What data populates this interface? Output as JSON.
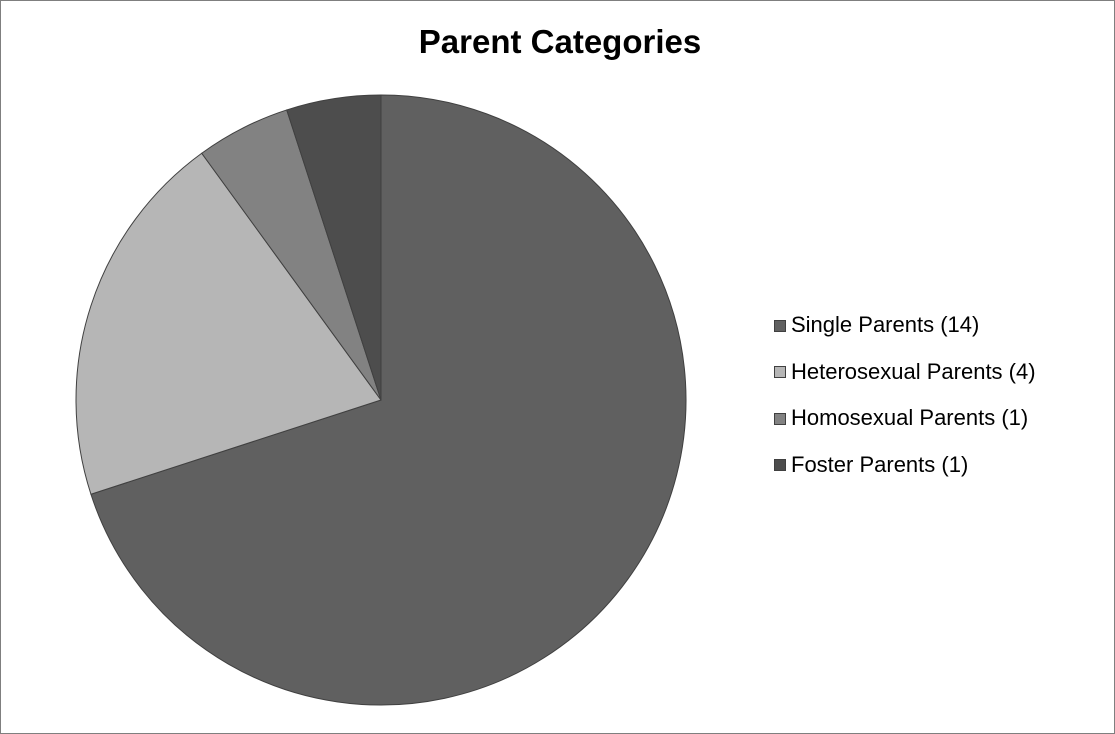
{
  "chart_data": {
    "type": "pie",
    "title": "Parent Categories",
    "start_angle_deg": 0,
    "direction": "clockwise",
    "legend_position": "right",
    "slices": [
      {
        "label": "Single Parents (14)",
        "value": 14,
        "color": "#606060"
      },
      {
        "label": "Heterosexual Parents (4)",
        "value": 4,
        "color": "#b6b6b6"
      },
      {
        "label": "Homosexual Parents (1)",
        "value": 1,
        "color": "#828282"
      },
      {
        "label": "Foster Parents (1)",
        "value": 1,
        "color": "#4d4d4d"
      }
    ]
  }
}
